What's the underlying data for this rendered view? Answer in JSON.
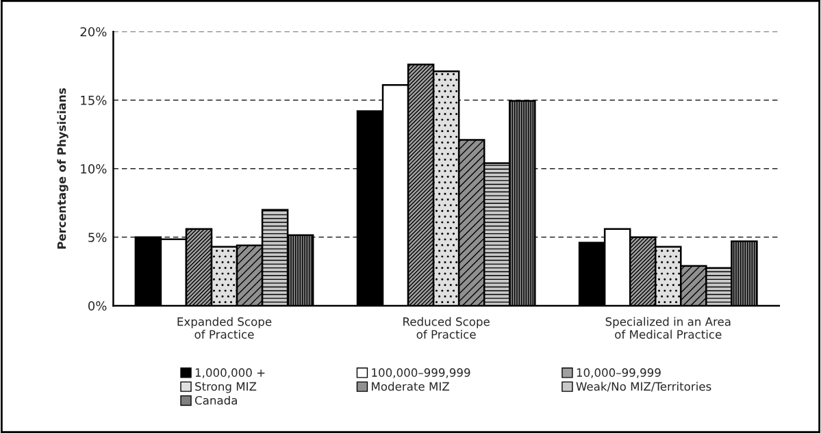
{
  "chart_data": {
    "type": "bar",
    "ylabel": "Percentage of Physicians",
    "categories": [
      "Expanded Scope\nof Practice",
      "Reduced Scope\nof Practice",
      "Specialized in an Area\nof Medical Practice"
    ],
    "series": [
      {
        "name": "1,000,000 +",
        "color": "#000000",
        "values": [
          5.0,
          14.2,
          4.6
        ]
      },
      {
        "name": "100,000–999,999",
        "color": "#ffffff",
        "values": [
          4.85,
          16.1,
          5.6
        ]
      },
      {
        "name": "10,000–99,999",
        "color": "#a0a0a0",
        "values": [
          5.6,
          17.6,
          5.0
        ]
      },
      {
        "name": "Strong MIZ",
        "color": "#e0e0e0",
        "values": [
          4.3,
          17.1,
          4.3
        ]
      },
      {
        "name": "Moderate MIZ",
        "color": "#909090",
        "values": [
          4.4,
          12.1,
          2.9
        ]
      },
      {
        "name": "Weak/No MIZ/Territories",
        "color": "#c8c8c8",
        "values": [
          7.0,
          10.4,
          2.75
        ]
      },
      {
        "name": "Canada",
        "color": "#808080",
        "values": [
          5.15,
          14.95,
          4.7
        ]
      }
    ],
    "ylim": [
      0,
      20
    ],
    "yticks": [
      {
        "value": 0,
        "label": "0%"
      },
      {
        "value": 5,
        "label": "5%"
      },
      {
        "value": 10,
        "label": "10%"
      },
      {
        "value": 15,
        "label": "15%"
      },
      {
        "value": 20,
        "label": "20%"
      }
    ],
    "grid": "y",
    "legend": "bottom"
  }
}
